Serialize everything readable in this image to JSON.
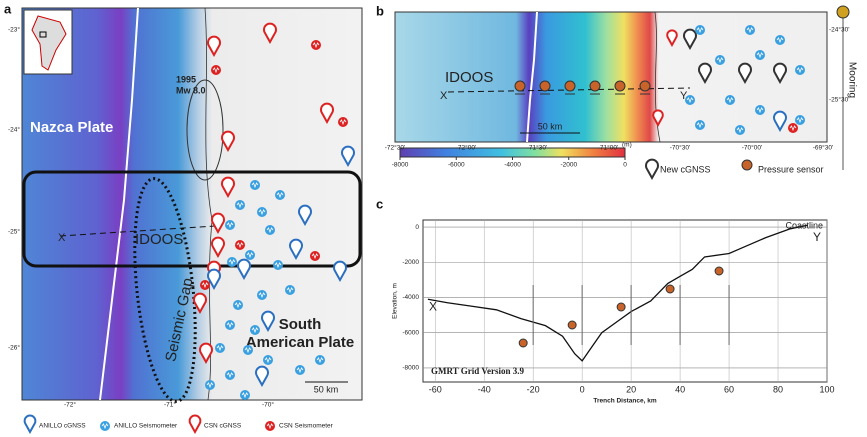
{
  "panel_a": {
    "label": "a",
    "nazca": "Nazca Plate",
    "south_american": [
      "South",
      "American Plate"
    ],
    "quake": [
      "1995",
      "Mw 8.0"
    ],
    "x": "X",
    "idoos": "IDOOS",
    "seismic_gap": "Seismic Gap",
    "scale": "50 km",
    "lat_ticks": [
      "-23°",
      "-24°",
      "-25°",
      "-26°"
    ],
    "lon_ticks": [
      "-72°",
      "-71°",
      "-70°"
    ],
    "legend": [
      "ANILLO cGNSS",
      "ANILLO Seismometer",
      "CSN cGNSS",
      "CSN Seismometer"
    ]
  },
  "panel_b": {
    "label": "b",
    "idoos": "IDOOS",
    "x": "X",
    "y": "Y",
    "scale": "50 km",
    "lon_ticks": [
      "-72°30'",
      "-72°00'",
      "-71°30'",
      "-71°00'",
      "-70°30'",
      "-70°00'",
      "-69°30'"
    ],
    "lat_ticks": [
      "-24°30'",
      "-25°30'"
    ],
    "colorbar_ticks": [
      -8000,
      -6000,
      -4000,
      -2000,
      0
    ],
    "colorbar_unit": "(m)",
    "legend": [
      "New cGNSS",
      "Pressure sensor"
    ],
    "mooring": "Mooring"
  },
  "panel_c": {
    "label": "c"
  },
  "chart_data": {
    "type": "line",
    "x_label": "Trench Distance, km",
    "y_label": "Elevation, m",
    "x": [
      -63,
      -55,
      -45,
      -35,
      -25,
      -15,
      -8,
      -3,
      0,
      3,
      8,
      15,
      20,
      28,
      35,
      40,
      45,
      50,
      60,
      65,
      75,
      85,
      92
    ],
    "values": [
      -4100,
      -4300,
      -4500,
      -4700,
      -5200,
      -5600,
      -6200,
      -7200,
      -7600,
      -7000,
      -6000,
      -5300,
      -4800,
      -4200,
      -3200,
      -2800,
      -2400,
      -1700,
      -1500,
      -1200,
      -600,
      -100,
      100
    ],
    "color": "#111111",
    "xlim": [
      -65,
      100
    ],
    "xticks": [
      -60,
      -40,
      -20,
      0,
      20,
      40,
      60,
      80,
      100
    ],
    "ylim": [
      -8800,
      400
    ],
    "yticks": [
      0,
      -2000,
      -4000,
      -6000,
      -8000
    ],
    "grid": true,
    "annotations": [
      "Coastline",
      "X",
      "Y",
      "GMRT Grid Version 3.9"
    ]
  }
}
